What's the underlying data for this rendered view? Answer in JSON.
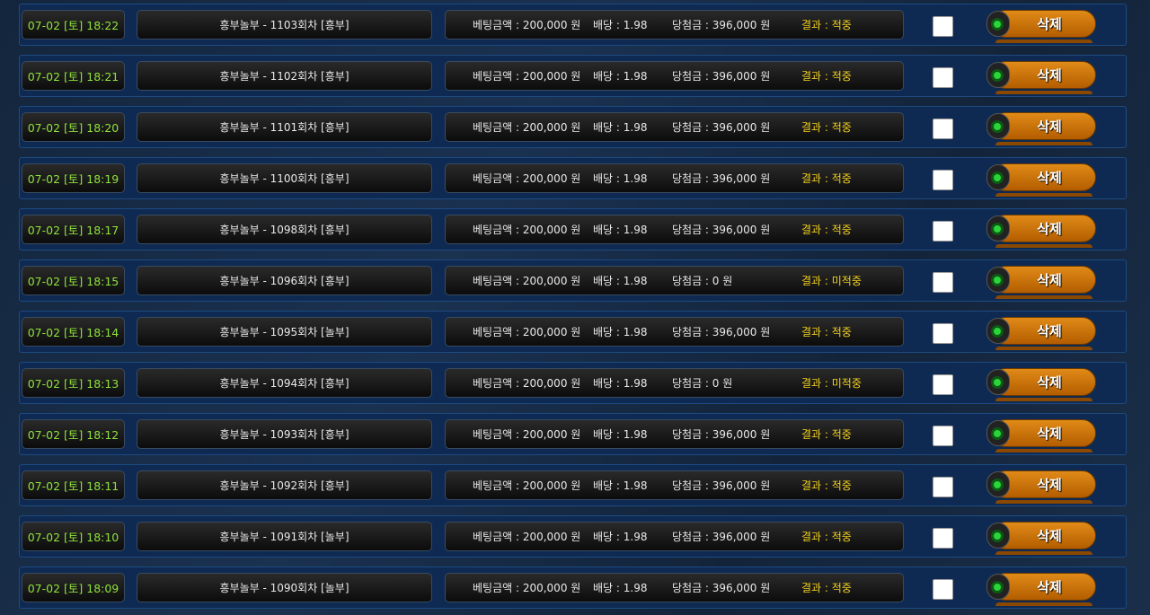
{
  "labels": {
    "bet_amount": "베팅금액 : ",
    "odds": "배당 : ",
    "payout": "당첨금 : ",
    "result": "결과 : ",
    "delete": "삭제",
    "won": " 원"
  },
  "colors": {
    "date": "#8fe23a",
    "result": "#f4d21e",
    "button": "#c96f0a"
  },
  "rows": [
    {
      "date": "07-02 [토] 18:22",
      "title": "흥부놀부 - 1103회차 [흥부]",
      "bet": "200,000",
      "odds": "1.98",
      "payout": "396,000",
      "result": "적중"
    },
    {
      "date": "07-02 [토] 18:21",
      "title": "흥부놀부 - 1102회차 [흥부]",
      "bet": "200,000",
      "odds": "1.98",
      "payout": "396,000",
      "result": "적중"
    },
    {
      "date": "07-02 [토] 18:20",
      "title": "흥부놀부 - 1101회차 [흥부]",
      "bet": "200,000",
      "odds": "1.98",
      "payout": "396,000",
      "result": "적중"
    },
    {
      "date": "07-02 [토] 18:19",
      "title": "흥부놀부 - 1100회차 [흥부]",
      "bet": "200,000",
      "odds": "1.98",
      "payout": "396,000",
      "result": "적중"
    },
    {
      "date": "07-02 [토] 18:17",
      "title": "흥부놀부 - 1098회차 [흥부]",
      "bet": "200,000",
      "odds": "1.98",
      "payout": "396,000",
      "result": "적중"
    },
    {
      "date": "07-02 [토] 18:15",
      "title": "흥부놀부 - 1096회차 [흥부]",
      "bet": "200,000",
      "odds": "1.98",
      "payout": "0",
      "result": "미적중"
    },
    {
      "date": "07-02 [토] 18:14",
      "title": "흥부놀부 - 1095회차 [놀부]",
      "bet": "200,000",
      "odds": "1.98",
      "payout": "396,000",
      "result": "적중"
    },
    {
      "date": "07-02 [토] 18:13",
      "title": "흥부놀부 - 1094회차 [흥부]",
      "bet": "200,000",
      "odds": "1.98",
      "payout": "0",
      "result": "미적중"
    },
    {
      "date": "07-02 [토] 18:12",
      "title": "흥부놀부 - 1093회차 [흥부]",
      "bet": "200,000",
      "odds": "1.98",
      "payout": "396,000",
      "result": "적중"
    },
    {
      "date": "07-02 [토] 18:11",
      "title": "흥부놀부 - 1092회차 [흥부]",
      "bet": "200,000",
      "odds": "1.98",
      "payout": "396,000",
      "result": "적중"
    },
    {
      "date": "07-02 [토] 18:10",
      "title": "흥부놀부 - 1091회차 [놀부]",
      "bet": "200,000",
      "odds": "1.98",
      "payout": "396,000",
      "result": "적중"
    },
    {
      "date": "07-02 [토] 18:09",
      "title": "흥부놀부 - 1090회차 [놀부]",
      "bet": "200,000",
      "odds": "1.98",
      "payout": "396,000",
      "result": "적중"
    }
  ]
}
